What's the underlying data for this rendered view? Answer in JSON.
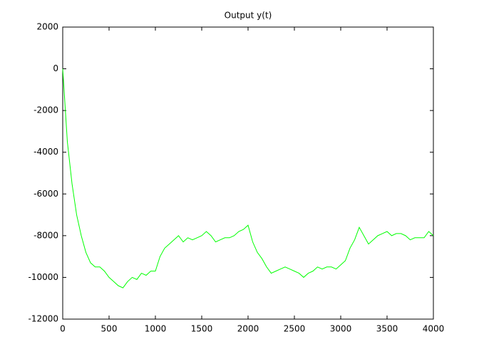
{
  "chart_data": {
    "type": "line",
    "title": "Output y(t)",
    "x": [
      0,
      50,
      100,
      150,
      200,
      250,
      300,
      350,
      400,
      450,
      500,
      550,
      600,
      650,
      700,
      750,
      800,
      850,
      900,
      950,
      1000,
      1050,
      1100,
      1150,
      1200,
      1250,
      1300,
      1350,
      1400,
      1450,
      1500,
      1550,
      1600,
      1650,
      1700,
      1750,
      1800,
      1850,
      1900,
      1950,
      2000,
      2050,
      2100,
      2150,
      2200,
      2250,
      2300,
      2350,
      2400,
      2450,
      2500,
      2550,
      2600,
      2650,
      2700,
      2750,
      2800,
      2850,
      2900,
      2950,
      3000,
      3050,
      3100,
      3150,
      3200,
      3250,
      3300,
      3350,
      3400,
      3450,
      3500,
      3550,
      3600,
      3650,
      3700,
      3750,
      3800,
      3850,
      3900,
      3950,
      4000
    ],
    "series": [
      {
        "color": "#00ff00",
        "values": [
          0,
          -3500,
          -5500,
          -7000,
          -8000,
          -8800,
          -9300,
          -9500,
          -9500,
          -9700,
          -10000,
          -10200,
          -10400,
          -10500,
          -10200,
          -10000,
          -10100,
          -9800,
          -9900,
          -9700,
          -9700,
          -9000,
          -8600,
          -8400,
          -8200,
          -8000,
          -8300,
          -8100,
          -8200,
          -8100,
          -8000,
          -7800,
          -8000,
          -8300,
          -8200,
          -8100,
          -8100,
          -8000,
          -7800,
          -7700,
          -7500,
          -8300,
          -8800,
          -9100,
          -9500,
          -9800,
          -9700,
          -9600,
          -9500,
          -9600,
          -9700,
          -9800,
          -10000,
          -9800,
          -9700,
          -9500,
          -9600,
          -9500,
          -9500,
          -9600,
          -9400,
          -9200,
          -8600,
          -8200,
          -7600,
          -8000,
          -8400,
          -8200,
          -8000,
          -7900,
          -7800,
          -8000,
          -7900,
          -7900,
          -8000,
          -8200,
          -8100,
          -8100,
          -8100,
          -7800,
          -8000
        ]
      }
    ],
    "xlim": [
      0,
      4000
    ],
    "xticks": [
      0,
      500,
      1000,
      1500,
      2000,
      2500,
      3000,
      3500,
      4000
    ],
    "ylim": [
      -12000,
      2000
    ],
    "yticks": [
      -12000,
      -10000,
      -8000,
      -6000,
      -4000,
      -2000,
      0,
      2000
    ]
  }
}
